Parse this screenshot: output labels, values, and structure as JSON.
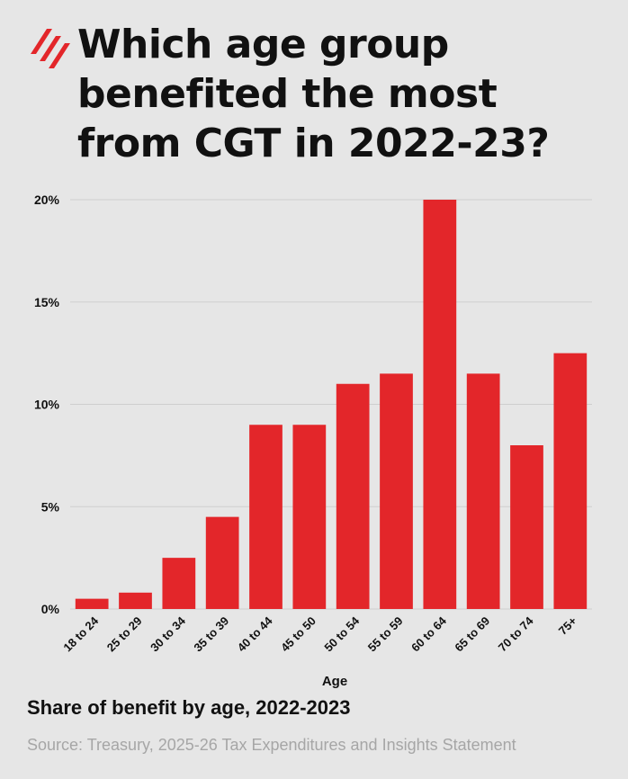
{
  "header": {
    "title_lines": [
      "Which age group",
      "benefited the most",
      "from CGT in 2022-23?"
    ],
    "logo_icon": "sbs-logo-icon"
  },
  "footer": {
    "subtitle": "Share of benefit by age, 2022-2023",
    "source": "Source: Treasury, 2025-26 Tax Expenditures and Insights Statement"
  },
  "colors": {
    "bar": "#e3262a",
    "logo": "#e3262a",
    "background": "#e6e6e6",
    "grid": "#cfcfcf",
    "source_text": "#a6a6a6"
  },
  "chart_data": {
    "type": "bar",
    "title": "Which age group benefited the most from CGT in 2022-23?",
    "xlabel": "Age",
    "ylabel": "",
    "categories": [
      "18 to 24",
      "25 to 29",
      "30 to 34",
      "35 to 39",
      "40 to 44",
      "45 to 50",
      "50 to 54",
      "55 to 59",
      "60 to 64",
      "65 to 69",
      "70 to 74",
      "75+"
    ],
    "values": [
      0.5,
      0.8,
      2.5,
      4.5,
      9.0,
      9.0,
      11.0,
      11.5,
      20.0,
      11.5,
      8.0,
      12.5
    ],
    "ylim": [
      0,
      20
    ],
    "yticks": [
      0,
      5,
      10,
      15,
      20
    ],
    "ytick_labels": [
      "0%",
      "5%",
      "10%",
      "15%",
      "20%"
    ],
    "grid": true,
    "legend": "none"
  }
}
